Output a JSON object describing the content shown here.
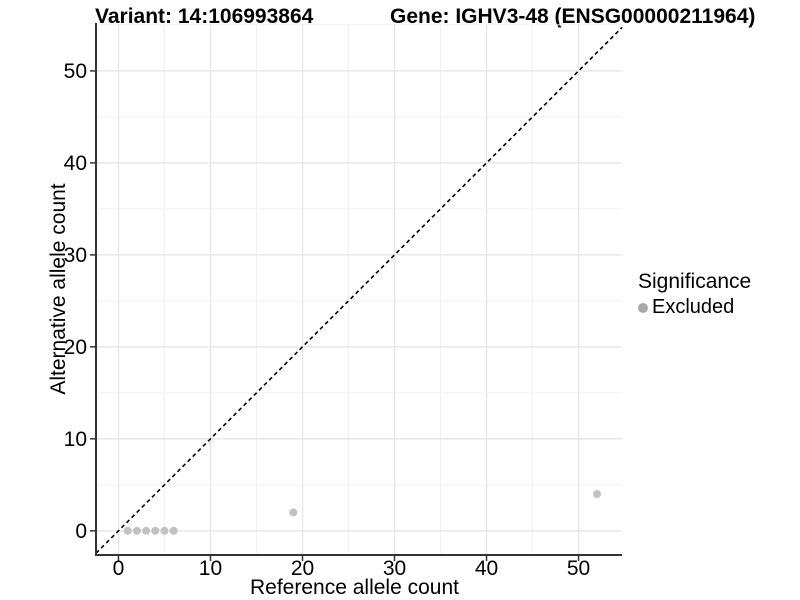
{
  "titles": {
    "variant": "Variant: 14:106993864",
    "gene": "Gene: IGHV3-48 (ENSG00000211964)"
  },
  "chart_data": {
    "type": "scatter",
    "xlabel": "Reference allele count",
    "ylabel": "Alternative allele count",
    "x_ticks": [
      0,
      10,
      20,
      30,
      40,
      50
    ],
    "y_ticks": [
      0,
      10,
      20,
      30,
      40,
      50
    ],
    "xlim": [
      -2.44,
      54.72
    ],
    "ylim": [
      -2.63,
      55.1
    ],
    "grid": "major and minor, light grey on white",
    "minor_tick_interval": 5,
    "reference_line": {
      "type": "identity y=x",
      "style": "dashed",
      "color": "#000000"
    },
    "legend_position": "right",
    "series": [
      {
        "name": "Excluded",
        "color": "#c2c2c2",
        "points": [
          [
            1,
            0
          ],
          [
            2,
            0
          ],
          [
            3,
            0
          ],
          [
            4,
            0
          ],
          [
            5,
            0
          ],
          [
            6,
            0
          ],
          [
            19,
            2
          ],
          [
            52,
            4
          ]
        ]
      }
    ]
  },
  "legend": {
    "title": "Significance",
    "items": [
      {
        "label": "Excluded",
        "color": "#a8a8a8"
      }
    ]
  },
  "colors": {
    "background": "#ffffff",
    "grid_major": "#e4e4e4",
    "grid_minor": "#f1f1f1",
    "axis_line": "#333333",
    "tick_mark": "#333333",
    "text": "#000000",
    "point": "#c2c2c2",
    "dashed_line": "#000000"
  }
}
